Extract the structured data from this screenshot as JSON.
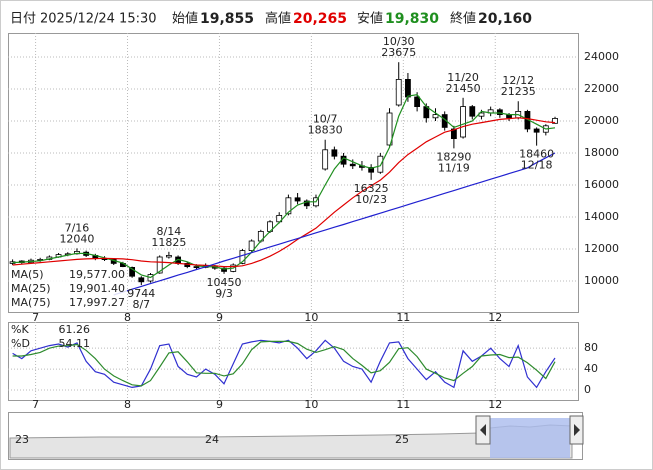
{
  "chart_data": {
    "type": "candlestick",
    "header": {
      "date_label": "日付",
      "datetime": "2025/12/24 15:30",
      "open_label": "始値",
      "open": "19,855",
      "high_label": "高値",
      "high": "20,265",
      "low_label": "安値",
      "low": "19,830",
      "close_label": "終値",
      "close": "20,160"
    },
    "x": [
      6.75,
      6.85,
      6.95,
      7.05,
      7.15,
      7.25,
      7.35,
      7.45,
      7.55,
      7.65,
      7.75,
      7.85,
      7.95,
      8.05,
      8.15,
      8.25,
      8.35,
      8.45,
      8.55,
      8.65,
      8.75,
      8.85,
      8.95,
      9.05,
      9.15,
      9.25,
      9.35,
      9.45,
      9.55,
      9.65,
      9.75,
      9.85,
      9.95,
      10.05,
      10.15,
      10.25,
      10.35,
      10.45,
      10.55,
      10.65,
      10.75,
      10.85,
      10.95,
      11.05,
      11.15,
      11.25,
      11.35,
      11.45,
      11.55,
      11.65,
      11.75,
      11.85,
      11.95,
      12.05,
      12.15,
      12.25,
      12.35,
      12.45,
      12.55,
      12.65
    ],
    "open": [
      11100,
      11250,
      11150,
      11300,
      11350,
      11500,
      11700,
      11700,
      11800,
      11600,
      11400,
      11350,
      11100,
      10850,
      10200,
      10000,
      10500,
      11500,
      11500,
      11100,
      10900,
      10850,
      10950,
      10800,
      10600,
      11100,
      11900,
      12500,
      13100,
      13700,
      14200,
      15200,
      15000,
      14700,
      17000,
      18200,
      17800,
      17300,
      17200,
      17100,
      16800,
      18500,
      21000,
      22600,
      21500,
      20900,
      20200,
      20400,
      19500,
      19000,
      20900,
      20300,
      20500,
      20700,
      20400,
      20200,
      20600,
      19500,
      19300,
      19855
    ],
    "high": [
      11350,
      11300,
      11400,
      11450,
      11600,
      11750,
      11800,
      12040,
      11900,
      11700,
      11550,
      11400,
      11200,
      10900,
      10300,
      10500,
      11600,
      11825,
      11600,
      11200,
      11050,
      11100,
      11000,
      10900,
      11100,
      12000,
      12600,
      13200,
      13800,
      14300,
      15400,
      15500,
      15100,
      15400,
      18830,
      18400,
      18000,
      17600,
      17500,
      17300,
      18000,
      20800,
      23675,
      23000,
      21800,
      21100,
      20800,
      20600,
      19700,
      21450,
      21000,
      20700,
      20900,
      20800,
      20500,
      21235,
      20700,
      19600,
      19800,
      20265
    ],
    "low": [
      11000,
      11050,
      11100,
      11200,
      11300,
      11450,
      11550,
      11650,
      11500,
      11300,
      11250,
      11000,
      10800,
      10200,
      9744,
      9900,
      10450,
      11400,
      11000,
      10800,
      10750,
      10800,
      10700,
      10450,
      10550,
      11050,
      11800,
      12400,
      13000,
      13600,
      14100,
      14800,
      14500,
      14600,
      16900,
      17600,
      17100,
      17000,
      16900,
      16325,
      16700,
      18400,
      20900,
      21200,
      20600,
      19900,
      20000,
      19400,
      18290,
      18900,
      20100,
      20100,
      20300,
      20200,
      20000,
      20100,
      19300,
      18460,
      19100,
      19830
    ],
    "close": [
      11200,
      11150,
      11300,
      11350,
      11500,
      11650,
      11700,
      11850,
      11600,
      11400,
      11350,
      11100,
      10900,
      10300,
      9950,
      10400,
      11500,
      11600,
      11100,
      10900,
      10850,
      10950,
      10800,
      10600,
      11000,
      11900,
      12500,
      13100,
      13700,
      14100,
      15200,
      15000,
      14700,
      15200,
      18200,
      17800,
      17300,
      17200,
      17100,
      16800,
      17800,
      20500,
      22600,
      21500,
      20900,
      20200,
      20400,
      19600,
      18900,
      20900,
      20300,
      20500,
      20700,
      20400,
      20200,
      20600,
      19500,
      19300,
      19700,
      20160
    ],
    "up_color": "#ffffff",
    "down_color": "#000000",
    "xlim": [
      6.7,
      12.9
    ],
    "xticks": [
      7,
      8,
      9,
      10,
      11,
      12
    ],
    "ylim": [
      8062.5,
      25500
    ],
    "yticks": [
      10000,
      12000,
      14000,
      16000,
      18000,
      20000,
      22000,
      24000
    ],
    "grid": true,
    "ma": [
      {
        "name": "MA(5)",
        "color": "#1f8f1f",
        "values": [
          11150,
          11180,
          11220,
          11260,
          11380,
          11500,
          11620,
          11730,
          11720,
          11600,
          11450,
          11280,
          11120,
          10750,
          10380,
          10220,
          10600,
          11000,
          11350,
          11200,
          10950,
          10900,
          10880,
          10750,
          10800,
          11200,
          11800,
          12500,
          13100,
          13650,
          14300,
          14750,
          14950,
          14950,
          16000,
          17000,
          17700,
          17450,
          17200,
          17050,
          17200,
          18350,
          20300,
          21550,
          21650,
          20900,
          20500,
          20100,
          19600,
          19800,
          20000,
          20600,
          20500,
          20500,
          20400,
          20400,
          20100,
          19800,
          19500,
          19577
        ],
        "value_labels": [
          null,
          null,
          null,
          null,
          null,
          null,
          null,
          null,
          null,
          null,
          null,
          null,
          null,
          null,
          null,
          null,
          null,
          null,
          null,
          null,
          null,
          null,
          null,
          null,
          null,
          null,
          null,
          null,
          null,
          null,
          null,
          null,
          null,
          null,
          null,
          null,
          null,
          null,
          null,
          null,
          null,
          null,
          null,
          null,
          null,
          null,
          null,
          null,
          null,
          null,
          null,
          null,
          null,
          null,
          null,
          null,
          null,
          null,
          null,
          "19,577.00"
        ]
      },
      {
        "name": "MA(25)",
        "color": "#e00000",
        "values": [
          11000,
          11050,
          11100,
          11150,
          11200,
          11250,
          11300,
          11350,
          11380,
          11400,
          11420,
          11400,
          11380,
          11330,
          11250,
          11200,
          11180,
          11150,
          11100,
          11050,
          11000,
          10980,
          10950,
          10900,
          10900,
          10950,
          11100,
          11300,
          11550,
          11850,
          12200,
          12600,
          12950,
          13300,
          13800,
          14300,
          14750,
          15200,
          15600,
          15950,
          16300,
          16800,
          17400,
          17900,
          18300,
          18700,
          19000,
          19300,
          19450,
          19650,
          19800,
          19900,
          20000,
          20100,
          20150,
          20200,
          20150,
          20050,
          19950,
          19901.4
        ],
        "value_labels": [
          null,
          null,
          null,
          null,
          null,
          null,
          null,
          null,
          null,
          null,
          null,
          null,
          null,
          null,
          null,
          null,
          null,
          null,
          null,
          null,
          null,
          null,
          null,
          null,
          null,
          null,
          null,
          null,
          null,
          null,
          null,
          null,
          null,
          null,
          null,
          null,
          null,
          null,
          null,
          null,
          null,
          null,
          null,
          null,
          null,
          null,
          null,
          null,
          null,
          null,
          null,
          null,
          null,
          null,
          null,
          null,
          null,
          null,
          null,
          "19,901.40"
        ]
      },
      {
        "name": "MA(75)",
        "color": "#2020d0",
        "values": [
          null,
          null,
          null,
          null,
          null,
          null,
          null,
          null,
          null,
          null,
          null,
          9130,
          9310,
          9490,
          9660,
          9840,
          10010,
          10190,
          10370,
          10540,
          10720,
          10890,
          11070,
          11250,
          11420,
          11600,
          11770,
          11950,
          12130,
          12300,
          12480,
          12650,
          12830,
          13010,
          13180,
          13360,
          13530,
          13710,
          13890,
          14060,
          14240,
          14420,
          14590,
          14770,
          14950,
          15120,
          15300,
          15480,
          15650,
          15830,
          16010,
          16180,
          16360,
          16540,
          16710,
          16890,
          17070,
          17400,
          17700,
          17997.27
        ],
        "value_labels": [
          null,
          null,
          null,
          null,
          null,
          null,
          null,
          null,
          null,
          null,
          null,
          null,
          null,
          null,
          null,
          null,
          null,
          null,
          null,
          null,
          null,
          null,
          null,
          null,
          null,
          null,
          null,
          null,
          null,
          null,
          null,
          null,
          null,
          null,
          null,
          null,
          null,
          null,
          null,
          null,
          null,
          null,
          null,
          null,
          null,
          null,
          null,
          null,
          null,
          null,
          null,
          null,
          null,
          null,
          null,
          null,
          null,
          null,
          null,
          "17,997.27"
        ]
      }
    ],
    "annotations": [
      {
        "x": 7.45,
        "date": "7/16",
        "value": 12040
      },
      {
        "x": 8.15,
        "date": "8/7",
        "value": 9744
      },
      {
        "x": 8.45,
        "date": "8/14",
        "value": 11825
      },
      {
        "x": 9.05,
        "date": "9/3",
        "value": 10450
      },
      {
        "x": 10.15,
        "date": "10/7",
        "value": 18830
      },
      {
        "x": 10.65,
        "date": "10/23",
        "value": 16325
      },
      {
        "x": 10.95,
        "date": "10/30",
        "value": 23675
      },
      {
        "x": 11.55,
        "date": "11/19",
        "value": 18290
      },
      {
        "x": 11.65,
        "date": "11/20",
        "value": 21450
      },
      {
        "x": 12.25,
        "date": "12/12",
        "value": 21235
      },
      {
        "x": 12.45,
        "date": "12/18",
        "value": 18460
      }
    ],
    "stochastic": {
      "ylim": [
        -19,
        130
      ],
      "yticks": [
        0,
        40,
        80
      ],
      "series": [
        {
          "name": "%K",
          "color": "#3030d0",
          "values": [
            70,
            60,
            75,
            80,
            85,
            88,
            82,
            90,
            55,
            35,
            30,
            15,
            10,
            5,
            8,
            40,
            85,
            88,
            45,
            30,
            25,
            40,
            30,
            12,
            50,
            88,
            92,
            95,
            93,
            90,
            95,
            80,
            60,
            75,
            95,
            80,
            55,
            45,
            40,
            15,
            55,
            90,
            92,
            60,
            40,
            20,
            35,
            15,
            5,
            75,
            55,
            65,
            80,
            60,
            45,
            85,
            25,
            5,
            35,
            61.26
          ]
        },
        {
          "name": "%D",
          "color": "#2e8b2e",
          "values": [
            65,
            65,
            68,
            72,
            80,
            84,
            85,
            87,
            76,
            60,
            40,
            27,
            18,
            10,
            8,
            18,
            44,
            71,
            73,
            54,
            33,
            32,
            32,
            27,
            31,
            50,
            77,
            92,
            93,
            93,
            93,
            89,
            78,
            72,
            77,
            83,
            77,
            60,
            47,
            33,
            37,
            53,
            79,
            81,
            64,
            40,
            32,
            23,
            18,
            32,
            45,
            65,
            67,
            68,
            62,
            63,
            52,
            38,
            22,
            54.11
          ]
        }
      ]
    },
    "navigator_ticks": [
      23,
      24,
      25
    ]
  }
}
